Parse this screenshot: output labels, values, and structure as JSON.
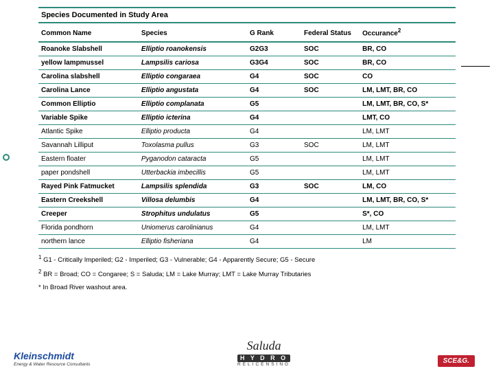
{
  "title": "Species Documented in Study Area",
  "headers": {
    "common": "Common Name",
    "species": "Species",
    "grank": "G Rank",
    "federal": "Federal Status",
    "occurance": "Occurance",
    "occurance_sup": "2"
  },
  "rows": [
    {
      "cn": "Roanoke Slabshell",
      "sp": "Elliptio roanokensis",
      "gr": "G2G3",
      "fs": "SOC",
      "oc": "BR, CO",
      "bold": true
    },
    {
      "cn": "yellow lampmussel",
      "sp": "Lampsilis cariosa",
      "gr": "G3G4",
      "fs": "SOC",
      "oc": "BR, CO",
      "bold": true
    },
    {
      "cn": "Carolina slabshell",
      "sp": "Elliptio congaraea",
      "gr": "G4",
      "fs": "SOC",
      "oc": "CO",
      "bold": true
    },
    {
      "cn": "Carolina Lance",
      "sp": "Elliptio angustata",
      "gr": "G4",
      "fs": "SOC",
      "oc": "LM, LMT, BR, CO",
      "bold": true
    },
    {
      "cn": "Common Elliptio",
      "sp": "Elliptio complanata",
      "gr": "G5",
      "fs": "",
      "oc": "LM, LMT, BR, CO, S*",
      "bold": true
    },
    {
      "cn": "Variable Spike",
      "sp": "Elliptio icterina",
      "gr": "G4",
      "fs": "",
      "oc": "LMT, CO",
      "bold": true
    },
    {
      "cn": "Atlantic Spike",
      "sp": "Elliptio producta",
      "gr": "G4",
      "fs": "",
      "oc": "LM, LMT",
      "bold": false
    },
    {
      "cn": "Savannah Lilliput",
      "sp": "Toxolasma pullus",
      "gr": "G3",
      "fs": "SOC",
      "oc": "LM, LMT",
      "bold": false
    },
    {
      "cn": "Eastern floater",
      "sp": "Pyganodon cataracta",
      "gr": "G5",
      "fs": "",
      "oc": "LM, LMT",
      "bold": false
    },
    {
      "cn": "paper pondshell",
      "sp": "Utterbackia imbecillis",
      "gr": "G5",
      "fs": "",
      "oc": "LM, LMT",
      "bold": false
    },
    {
      "cn": "Rayed Pink Fatmucket",
      "sp": "Lampsilis splendida",
      "gr": "G3",
      "fs": "SOC",
      "oc": "LM, CO",
      "bold": true
    },
    {
      "cn": "Eastern Creekshell",
      "sp": "Villosa delumbis",
      "gr": "G4",
      "fs": "",
      "oc": "LM, LMT, BR, CO, S*",
      "bold": true
    },
    {
      "cn": "Creeper",
      "sp": "Strophitus undulatus",
      "gr": "G5",
      "fs": "",
      "oc": "S*, CO",
      "bold": true
    },
    {
      "cn": "Florida pondhorn",
      "sp": "Uniomerus carolinianus",
      "gr": "G4",
      "fs": "",
      "oc": "LM, LMT",
      "bold": false
    },
    {
      "cn": "northern lance",
      "sp": "Elliptio fisheriana",
      "gr": "G4",
      "fs": "",
      "oc": "LM",
      "bold": false
    }
  ],
  "footnotes": {
    "f1_sup": "1",
    "f1": " G1 - Critically Imperiled; G2 - Imperiled; G3 - Vulnerable; G4 - Apparently Secure; G5 - Secure",
    "f2_sup": "2",
    "f2": " BR = Broad; CO = Congaree; S = Saluda; LM = Lake Murray; LMT = Lake Murray Tributaries",
    "f3": "* In Broad River washout area."
  },
  "logos": {
    "left_big": "Kleinschmidt",
    "left_sub": "Energy & Water Resource Consultants",
    "center_script": "Saluda",
    "center_hydro": "H Y D R O",
    "center_rel": "RELICENSING",
    "right": "SCE&G."
  },
  "colors": {
    "accent": "#2a8a7a",
    "brand_left": "#1a4aa0",
    "brand_right": "#c02030"
  }
}
